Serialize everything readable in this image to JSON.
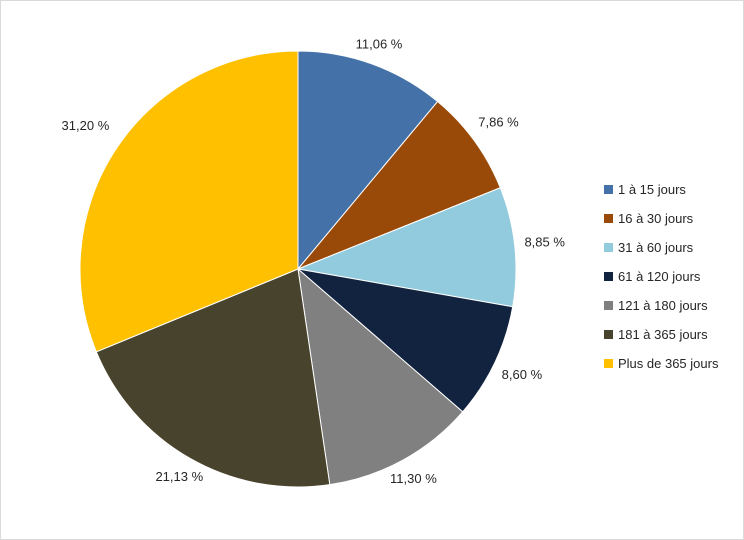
{
  "chart_data": {
    "type": "pie",
    "categories": [
      "1 à 15 jours",
      "16 à 30 jours",
      "31 à 60 jours",
      "61 à 120 jours",
      "121 à 180 jours",
      "181 à 365 jours",
      "Plus de 365 jours"
    ],
    "values": [
      11.06,
      7.86,
      8.85,
      8.6,
      11.3,
      21.13,
      31.2
    ],
    "data_labels": [
      "11,06 %",
      "7,86 %",
      "8,85 %",
      "8,60 %",
      "11,30 %",
      "21,13 %",
      "31,20 %"
    ],
    "colors": [
      "#4472a8",
      "#9a4a08",
      "#92cbdd",
      "#11233f",
      "#808080",
      "#48432c",
      "#ffc000"
    ],
    "legend_placement": "right",
    "start": "top, clockwise"
  }
}
